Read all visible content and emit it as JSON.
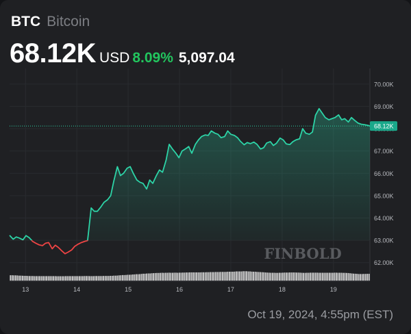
{
  "header": {
    "symbol": "BTC",
    "name": "Bitcoin",
    "price": "68.12K",
    "currency": "USD",
    "change_pct": "8.09%",
    "change_abs": "5,097.04"
  },
  "timestamp": "Oct 19, 2024, 4:55pm (EST)",
  "watermark": "FINBOLD",
  "colors": {
    "up": "#2dd4a7",
    "down": "#ef4444",
    "change_text": "#22c55e",
    "background": "#1f2023",
    "volume": "#d9d9d9"
  },
  "chart_data": {
    "type": "line",
    "ylim": [
      61500,
      70700
    ],
    "y_ticks": [
      62000,
      63000,
      64000,
      65000,
      66000,
      67000,
      68000,
      69000,
      70000
    ],
    "y_tick_labels": [
      "62.00K",
      "63.00K",
      "64.00K",
      "65.00K",
      "66.00K",
      "67.00K",
      "68.00K",
      "69.00K",
      "70.00K"
    ],
    "x_range": [
      12.69,
      19.71
    ],
    "x_ticks": [
      13,
      14,
      15,
      16,
      17,
      18,
      19
    ],
    "x_tick_labels": [
      "13",
      "14",
      "15",
      "16",
      "17",
      "18",
      "19"
    ],
    "last_price_label": "68.12K",
    "last_price": 68120,
    "baseline": 63000,
    "grid": true,
    "series": [
      {
        "x": [
          12.69,
          12.76,
          12.82,
          12.88,
          12.95,
          13.01,
          13.07,
          13.14,
          13.2,
          13.26,
          13.33,
          13.39,
          13.45,
          13.52,
          13.58,
          13.64,
          13.71,
          13.77,
          13.83,
          13.9,
          13.96,
          14.02,
          14.09,
          14.15,
          14.21,
          14.28,
          14.34,
          14.4,
          14.47,
          14.53,
          14.6,
          14.66,
          14.72,
          14.79,
          14.85,
          14.91,
          14.98,
          15.04,
          15.1,
          15.17,
          15.23,
          15.29,
          15.36,
          15.42,
          15.48,
          15.55,
          15.61,
          15.67,
          15.74,
          15.8,
          15.86,
          15.93,
          15.99,
          16.05,
          16.12,
          16.18,
          16.24,
          16.31,
          16.37,
          16.43,
          16.5,
          16.56,
          16.62,
          16.69,
          16.75,
          16.81,
          16.88,
          16.94,
          17.0,
          17.07,
          17.13,
          17.19,
          17.26,
          17.32,
          17.38,
          17.45,
          17.51,
          17.58,
          17.64,
          17.7,
          17.77,
          17.83,
          17.89,
          17.96,
          18.02,
          18.08,
          18.15,
          18.21,
          18.27,
          18.34,
          18.4,
          18.46,
          18.53,
          18.59,
          18.65,
          18.72,
          18.78,
          18.84,
          18.91,
          18.97,
          19.03,
          19.1,
          19.16,
          19.22,
          19.29,
          19.35,
          19.41,
          19.48,
          19.54,
          19.6,
          19.67,
          19.71
        ],
        "y": [
          63220,
          63050,
          63150,
          63100,
          63020,
          63210,
          63120,
          62950,
          62870,
          62800,
          62760,
          62870,
          62900,
          62620,
          62780,
          62680,
          62520,
          62400,
          62470,
          62570,
          62730,
          62820,
          62900,
          62950,
          62990,
          64450,
          64300,
          64300,
          64500,
          64700,
          64820,
          65000,
          65650,
          66300,
          65900,
          66000,
          66230,
          66300,
          66000,
          65700,
          65600,
          65550,
          65300,
          65700,
          65550,
          65900,
          66150,
          66050,
          66600,
          67300,
          67100,
          66900,
          66700,
          67000,
          67100,
          67200,
          66900,
          67300,
          67500,
          67650,
          67720,
          67700,
          67900,
          67800,
          67750,
          67600,
          67650,
          67900,
          67750,
          67700,
          67600,
          67430,
          67280,
          67380,
          67330,
          67400,
          67300,
          67090,
          67150,
          67360,
          67420,
          67250,
          67350,
          67580,
          67500,
          67320,
          67290,
          67420,
          67500,
          67550,
          68000,
          67800,
          67750,
          67850,
          68600,
          68900,
          68700,
          68500,
          68400,
          68450,
          68500,
          68620,
          68400,
          68450,
          68300,
          68500,
          68380,
          68250,
          68200,
          68180,
          68150,
          68120
        ]
      }
    ],
    "volume": [
      0.56,
      0.56,
      0.55,
      0.55,
      0.54,
      0.52,
      0.52,
      0.51,
      0.5,
      0.5,
      0.49,
      0.48,
      0.48,
      0.48,
      0.47,
      0.47,
      0.47,
      0.47,
      0.47,
      0.47,
      0.47,
      0.47,
      0.47,
      0.47,
      0.47,
      0.47,
      0.47,
      0.46,
      0.46,
      0.46,
      0.46,
      0.46,
      0.47,
      0.47,
      0.47,
      0.47,
      0.47,
      0.47,
      0.47,
      0.47,
      0.47,
      0.47,
      0.47,
      0.48,
      0.48,
      0.48,
      0.47,
      0.47,
      0.47,
      0.48,
      0.48,
      0.48,
      0.48,
      0.48,
      0.49,
      0.49,
      0.49,
      0.49,
      0.5,
      0.5,
      0.52,
      0.52,
      0.53,
      0.55,
      0.56,
      0.58,
      0.58,
      0.59,
      0.61,
      0.61,
      0.62,
      0.64,
      0.65,
      0.67,
      0.67,
      0.68,
      0.7,
      0.72,
      0.72,
      0.74,
      0.75,
      0.75,
      0.77,
      0.78,
      0.79,
      0.8,
      0.8,
      0.81,
      0.82,
      0.81,
      0.82,
      0.82,
      0.83,
      0.82,
      0.82,
      0.83,
      0.83,
      0.82,
      0.83,
      0.83,
      0.84,
      0.84,
      0.85,
      0.85,
      0.86,
      0.86,
      0.86,
      0.86,
      0.86,
      0.86,
      0.86,
      0.87,
      0.87,
      0.87,
      0.88,
      0.88,
      0.89,
      0.89,
      0.89,
      0.9,
      0.9,
      0.9,
      0.91,
      0.91,
      0.91,
      0.91,
      0.93,
      0.93,
      0.93,
      0.93,
      0.94,
      0.96,
      0.96,
      0.96,
      0.96,
      0.98,
      0.98,
      0.98,
      0.96,
      0.96,
      0.94,
      0.93,
      0.93,
      0.91,
      0.9,
      0.89,
      0.88,
      0.87,
      0.85,
      0.84,
      0.83,
      0.82,
      0.82,
      0.82,
      0.81,
      0.81,
      0.82,
      0.82,
      0.83,
      0.84,
      0.84,
      0.84,
      0.85,
      0.85,
      0.85,
      0.85,
      0.84,
      0.84,
      0.83,
      0.82,
      0.81,
      0.81,
      0.82,
      0.82,
      0.83,
      0.83,
      0.83,
      0.83,
      0.83,
      0.82,
      0.82,
      0.82,
      0.82,
      0.82,
      0.82,
      0.82,
      0.82,
      0.82,
      0.83,
      0.83,
      0.82,
      0.82,
      0.82,
      0.81,
      0.81,
      0.8,
      0.79,
      0.77,
      0.75,
      0.73,
      0.72,
      0.71,
      0.69,
      0.69,
      0.69,
      0.7,
      0.7,
      0.71,
      0.71
    ]
  }
}
